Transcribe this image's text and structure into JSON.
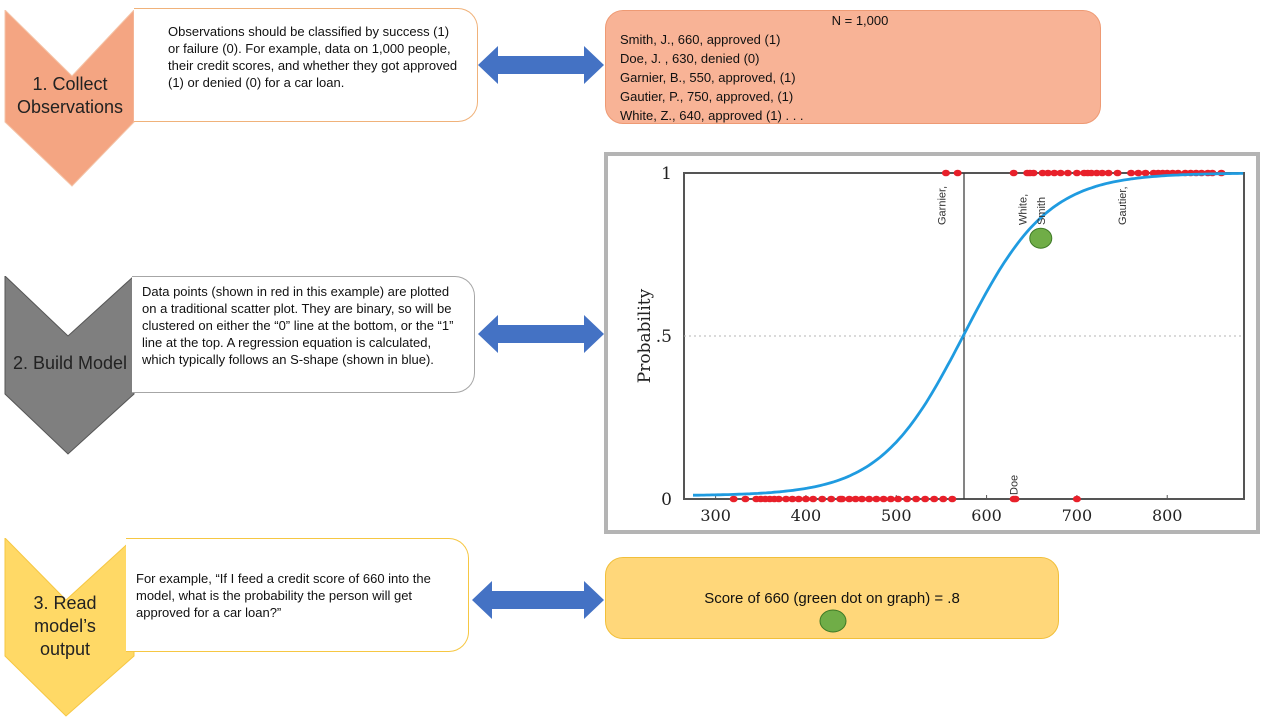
{
  "steps": [
    {
      "label_line1": "1. Collect",
      "label_line2": "Observations",
      "description": "Observations should be classified by success (1) or failure (0).  For example, data on 1,000 people, their credit scores, and whether they got approved (1) or denied (0) for a car loan."
    },
    {
      "label_line1": "2. Build Model",
      "description": "Data points (shown in red in this example) are plotted on a traditional scatter plot. They are binary, so will be clustered on either the “0” line at the bottom,  or the “1” line at the top. A regression equation is calculated, which typically follows an S-shape (shown in blue)."
    },
    {
      "label_line1": "3. Read",
      "label_line2": "model’s",
      "label_line3": "output",
      "description": "For example, “If I feed a credit score of 660 into the model, what is the probability the person will get approved for a car loan?”"
    }
  ],
  "observations": {
    "header": "N = 1,000",
    "rows": [
      "Smith, J., 660, approved (1)",
      "Doe, J. , 630, denied (0)",
      "Garnier, B., 550, approved, (1)",
      "Gautier, P., 750, approved, (1)",
      "White, Z., 640, approved (1) . . ."
    ]
  },
  "result": {
    "text": "Score of 660 (green dot on graph) = .8"
  },
  "colors": {
    "step1": "#f4a582",
    "step2": "#7f7f7f",
    "step3": "#ffd966",
    "obs_box": "#f8b396",
    "result_box": "#ffd77a",
    "arrow": "#4472c4",
    "curve": "#1f9be0",
    "points": "#e8202a",
    "highlight": "#70ad47"
  },
  "chart_data": {
    "type": "scatter",
    "ylabel": "Probability",
    "xlabel": "",
    "xlim": [
      265,
      885
    ],
    "ylim": [
      0,
      1
    ],
    "x_ticks": [
      300,
      400,
      500,
      600,
      700,
      800
    ],
    "y_ticks": [
      {
        "value": 0,
        "label": "0"
      },
      {
        "value": 0.5,
        "label": ".5"
      },
      {
        "value": 1,
        "label": "1"
      }
    ],
    "reference_line_x": 575,
    "reference_line_y": 0.5,
    "curve": {
      "name": "",
      "midpoint": 575,
      "slope": 0.0215,
      "x_range": [
        275,
        885
      ]
    },
    "points_y1": [
      555,
      568,
      630,
      645,
      648,
      652,
      662,
      668,
      675,
      682,
      690,
      700,
      708,
      712,
      716,
      722,
      728,
      735,
      745,
      760,
      768,
      776,
      785,
      790,
      795,
      800,
      806,
      812,
      820,
      826,
      832,
      838,
      845,
      850,
      860
    ],
    "points_y0": [
      320,
      333,
      345,
      350,
      355,
      360,
      365,
      370,
      378,
      385,
      392,
      400,
      408,
      418,
      428,
      438,
      440,
      448,
      455,
      462,
      470,
      478,
      486,
      494,
      502,
      512,
      522,
      532,
      542,
      552,
      562,
      630,
      632,
      700
    ],
    "labeled_points": [
      {
        "name": "Garnier,",
        "x": 550,
        "y": 1
      },
      {
        "name": "White,",
        "x": 640,
        "y": 1
      },
      {
        "name": "Smith",
        "x": 660,
        "y": 1
      },
      {
        "name": "Gautier,",
        "x": 750,
        "y": 1
      },
      {
        "name": "Doe",
        "x": 630,
        "y": 0
      }
    ],
    "highlight_point": {
      "x": 660,
      "y": 0.8
    }
  }
}
